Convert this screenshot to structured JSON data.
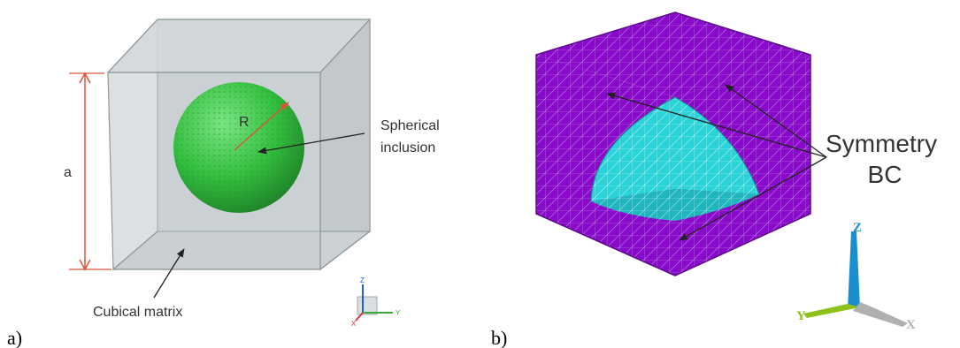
{
  "panel_a": {
    "label": "a)",
    "dimension_label": "a",
    "radius_label": "R",
    "inclusion_label_line1": "Spherical",
    "inclusion_label_line2": "inclusion",
    "matrix_label": "Cubical matrix",
    "triad": {
      "z": "Z",
      "x": "X",
      "y": "Y"
    }
  },
  "panel_b": {
    "label": "b)",
    "bc_label_line1": "Symmetry",
    "bc_label_line2": "BC",
    "triad": {
      "z": "Z",
      "x": "X",
      "y": "Y"
    }
  },
  "colors": {
    "cube_face": "#c9ced2",
    "cube_edge": "#8f979c",
    "sphere": "#35c040",
    "dimension_arrow": "#d9553a",
    "mesh_matrix": "#8a0acb",
    "mesh_inclusion": "#2ad3d8",
    "triad_z": "#1a8fd0",
    "triad_y": "#8cc21a",
    "triad_x": "#b0b0b0"
  }
}
